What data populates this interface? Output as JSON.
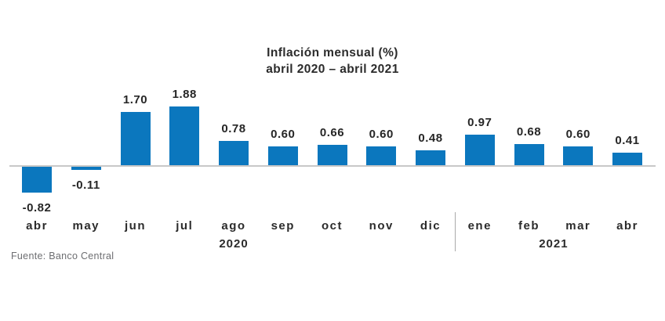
{
  "chart_data": {
    "type": "bar",
    "title": "Inflación mensual (%)",
    "subtitle": "abril 2020 – abril 2021",
    "categories": [
      "abr",
      "may",
      "jun",
      "jul",
      "ago",
      "sep",
      "oct",
      "nov",
      "dic",
      "ene",
      "feb",
      "mar",
      "abr"
    ],
    "values": [
      -0.82,
      -0.11,
      1.7,
      1.88,
      0.78,
      0.6,
      0.66,
      0.6,
      0.48,
      0.97,
      0.68,
      0.6,
      0.41
    ],
    "value_labels": [
      "-0.82",
      "-0.11",
      "1.70",
      "1.88",
      "0.78",
      "0.60",
      "0.66",
      "0.60",
      "0.48",
      "0.97",
      "0.68",
      "0.60",
      "0.41"
    ],
    "year_groups": [
      {
        "label": "2020",
        "center_index": 4
      },
      {
        "label": "2021",
        "center_index": 10.5
      }
    ],
    "divider_after_index": 8,
    "bar_color": "#0b77be",
    "axis_color": "#c8c8c8",
    "text_color": "#2b2b2b",
    "xlabel": "",
    "ylabel": "",
    "ylim": [
      -1.0,
      2.0
    ],
    "grid": false,
    "legend": false
  },
  "source": "Fuente: Banco Central"
}
